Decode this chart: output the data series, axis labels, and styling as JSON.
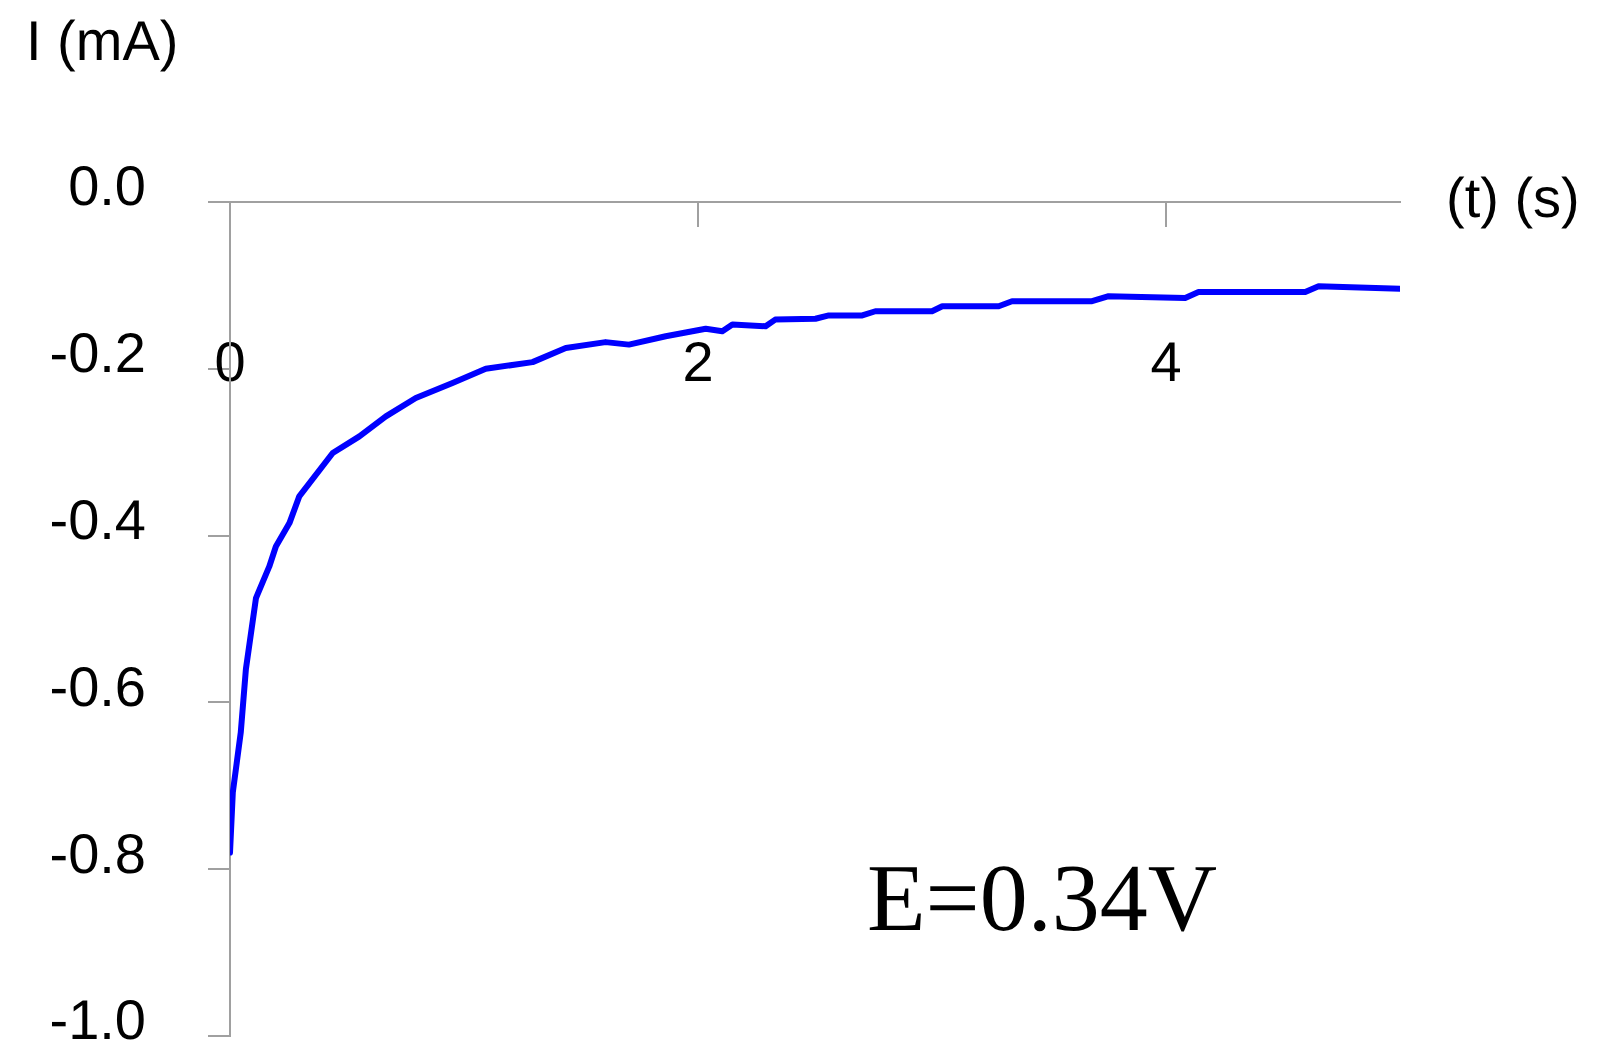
{
  "chart_data": {
    "type": "line",
    "xlabel": "(t) (s)",
    "ylabel": "I (mA)",
    "annotations": [
      "E=0.34V"
    ],
    "xlim": [
      0,
      5
    ],
    "xticks": [
      0,
      2,
      4
    ],
    "ylim": [
      -1,
      0
    ],
    "yticks": [
      {
        "value": 0,
        "label": "0.0"
      },
      -0.2,
      -0.4,
      -0.6,
      -0.8,
      {
        "value": -1,
        "label": "-1.0"
      }
    ],
    "series": [
      {
        "color": "#0000ff",
        "x": [
          0,
          0.012,
          0.046,
          0.068,
          0.111,
          0.168,
          0.196,
          0.254,
          0.296,
          0.439,
          0.553,
          0.666,
          0.794,
          0.951,
          1.093,
          1.293,
          1.435,
          1.605,
          1.705,
          1.862,
          2.033,
          2.104,
          2.147,
          2.289,
          2.33,
          2.502,
          2.559,
          2.702,
          2.758,
          3.0,
          3.044,
          3.285,
          3.342,
          3.684,
          3.755,
          4.082,
          4.139,
          4.595,
          4.652,
          5.0
        ],
        "values": [
          -0.78,
          -0.708,
          -0.636,
          -0.56,
          -0.475,
          -0.437,
          -0.413,
          -0.385,
          -0.353,
          -0.301,
          -0.281,
          -0.257,
          -0.235,
          -0.217,
          -0.2,
          -0.192,
          -0.175,
          -0.168,
          -0.171,
          -0.161,
          -0.152,
          -0.155,
          -0.147,
          -0.149,
          -0.141,
          -0.14,
          -0.136,
          -0.136,
          -0.131,
          -0.131,
          -0.125,
          -0.125,
          -0.119,
          -0.119,
          -0.113,
          -0.115,
          -0.108,
          -0.108,
          -0.101,
          -0.104
        ]
      }
    ]
  }
}
